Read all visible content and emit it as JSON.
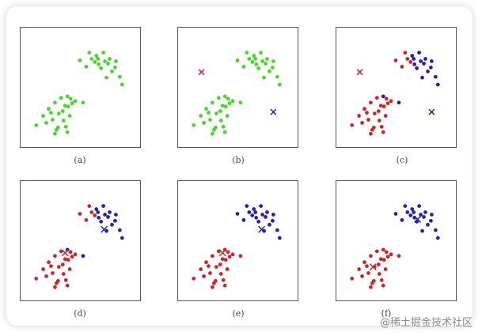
{
  "colors": {
    "green": "#3ddc1e",
    "red": "#d81f1f",
    "blue": "#1f1fbf"
  },
  "panels": [
    {
      "label": "(a)"
    },
    {
      "label": "(b)"
    },
    {
      "label": "(c)"
    },
    {
      "label": "(d)"
    },
    {
      "label": "(e)"
    },
    {
      "label": "(f)"
    }
  ],
  "watermark": "@稀土掘金技术社区"
}
